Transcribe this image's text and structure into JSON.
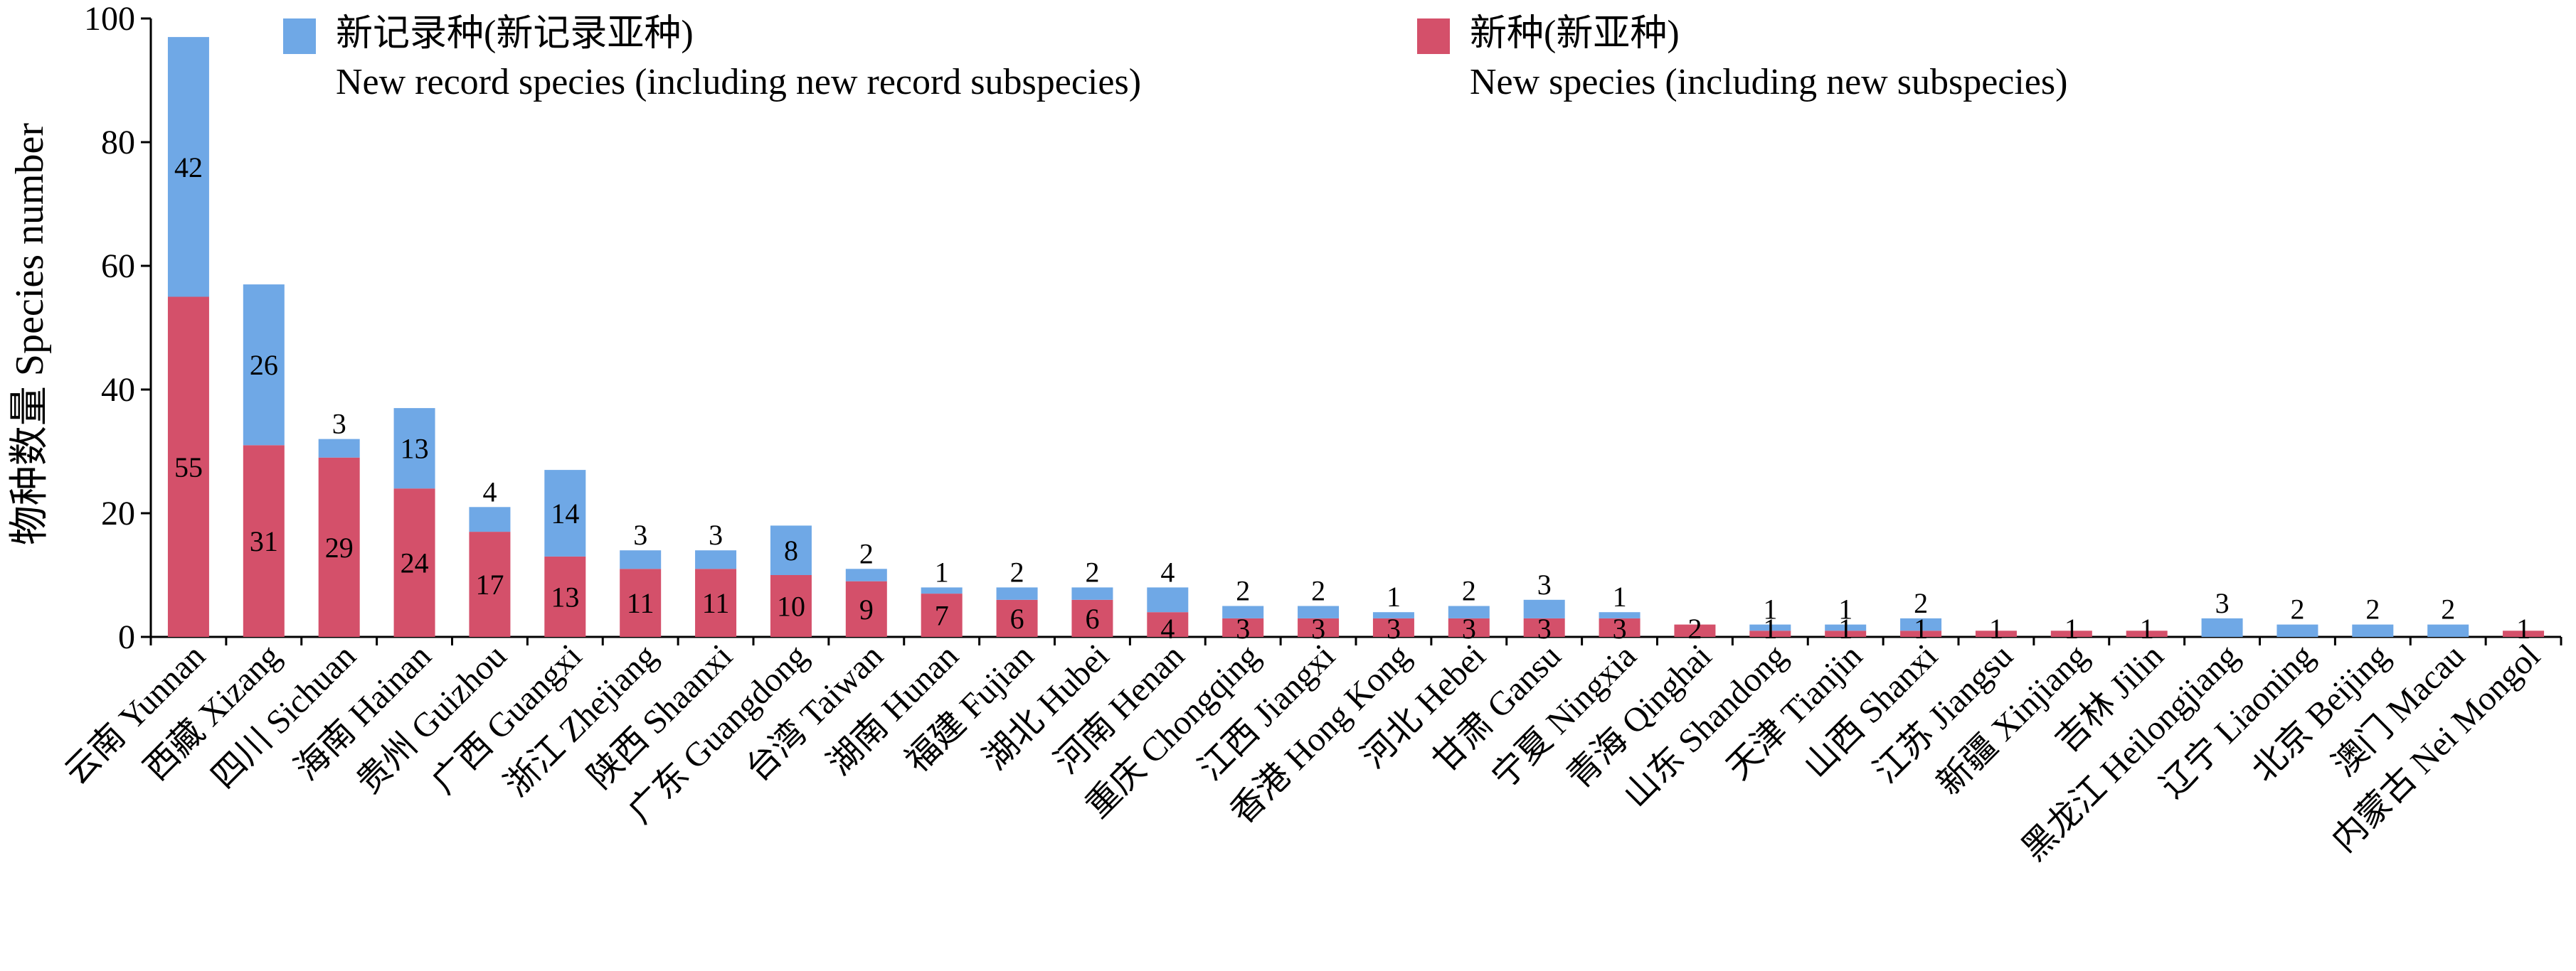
{
  "chart_data": {
    "type": "bar",
    "stacked": true,
    "ylabel": "物种数量 Species number",
    "ylim": [
      0,
      100
    ],
    "yticks": [
      0,
      20,
      40,
      60,
      80,
      100
    ],
    "grid": false,
    "legend_position": "top",
    "categories": [
      "云南 Yunnan",
      "西藏 Xizang",
      "四川 Sichuan",
      "海南 Hainan",
      "贵州 Guizhou",
      "广西 Guangxi",
      "浙江 Zhejiang",
      "陕西 Shaanxi",
      "广东 Guangdong",
      "台湾 Taiwan",
      "湖南 Hunan",
      "福建 Fujian",
      "湖北 Hubei",
      "河南 Henan",
      "重庆 Chongqing",
      "江西 Jiangxi",
      "香港 Hong Kong",
      "河北 Hebei",
      "甘肃 Gansu",
      "宁夏 Ningxia",
      "青海 Qinghai",
      "山东 Shandong",
      "天津 Tianjin",
      "山西 Shanxi",
      "江苏 Jiangsu",
      "新疆 Xinjiang",
      "吉林 Jilin",
      "黑龙江 Heilongjiang",
      "辽宁 Liaoning",
      "北京 Beijing",
      "澳门 Macau",
      "内蒙古 Nei Mongol"
    ],
    "series": [
      {
        "name": "新种(新亚种)",
        "name_en": "New species (including new subspecies)",
        "color": "#d4506a",
        "values": [
          55,
          31,
          29,
          24,
          17,
          13,
          11,
          11,
          10,
          9,
          7,
          6,
          6,
          4,
          3,
          3,
          3,
          3,
          3,
          3,
          2,
          1,
          1,
          1,
          1,
          1,
          1,
          0,
          0,
          0,
          0,
          1
        ]
      },
      {
        "name": "新记录种(新记录亚种)",
        "name_en": "New record species (including new record subspecies)",
        "color": "#6fa8e6",
        "values": [
          42,
          26,
          3,
          13,
          4,
          14,
          3,
          3,
          8,
          2,
          1,
          2,
          2,
          4,
          2,
          2,
          1,
          2,
          3,
          1,
          0,
          1,
          1,
          2,
          0,
          0,
          0,
          3,
          2,
          2,
          2,
          0
        ]
      }
    ]
  }
}
